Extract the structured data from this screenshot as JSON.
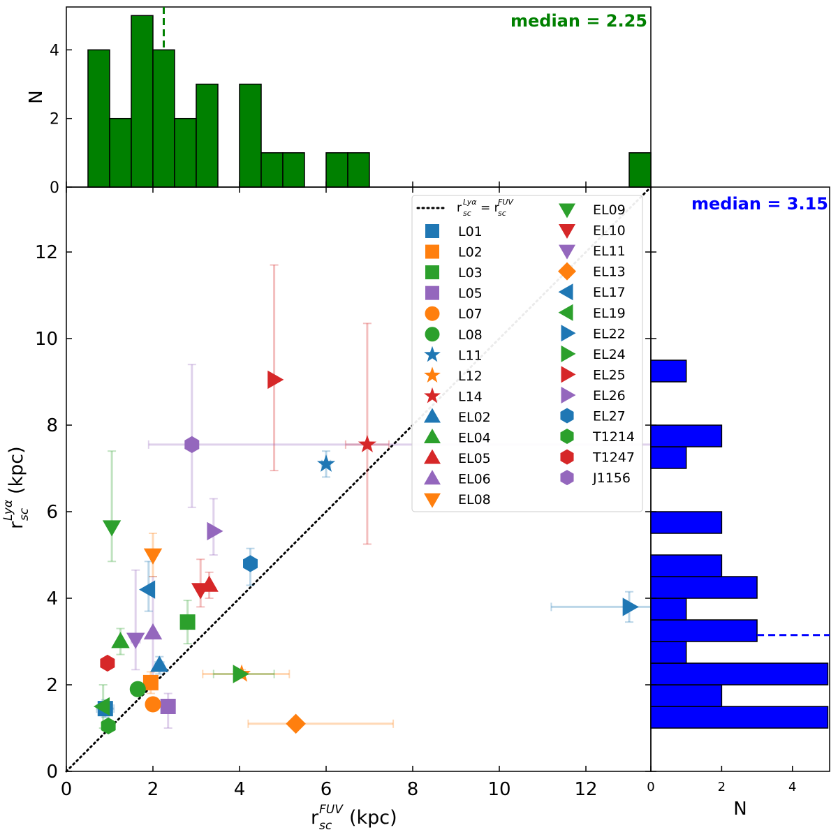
{
  "chart_data": [
    {
      "type": "histogram",
      "panel": "top",
      "orientation": "vertical",
      "ylabel": "N",
      "yticks": [
        0,
        2,
        4
      ],
      "bin_width": 0.5,
      "bins": [
        {
          "start": 0.5,
          "count": 4
        },
        {
          "start": 1.0,
          "count": 2
        },
        {
          "start": 1.5,
          "count": 5
        },
        {
          "start": 2.0,
          "count": 4
        },
        {
          "start": 2.5,
          "count": 2
        },
        {
          "start": 3.0,
          "count": 3
        },
        {
          "start": 4.0,
          "count": 3
        },
        {
          "start": 4.5,
          "count": 1
        },
        {
          "start": 5.0,
          "count": 1
        },
        {
          "start": 6.0,
          "count": 1
        },
        {
          "start": 6.5,
          "count": 1
        },
        {
          "start": 13.0,
          "count": 1
        }
      ],
      "median": 2.25,
      "median_label": "median = 2.25",
      "color": "#008000"
    },
    {
      "type": "scatter",
      "panel": "main",
      "xlabel": "r_sc^FUV (kpc)",
      "ylabel": "r_sc^Lyα (kpc)",
      "xlim": [
        0,
        13.5
      ],
      "ylim": [
        0,
        13.5
      ],
      "xticks": [
        0,
        2,
        4,
        6,
        8,
        10,
        12
      ],
      "yticks": [
        0,
        2,
        4,
        6,
        8,
        10,
        12
      ],
      "reference_line": {
        "label": "r_sc^Lyα = r_sc^FUV",
        "style": "dotted",
        "color": "#000000"
      },
      "series": [
        {
          "name": "L01",
          "marker": "square",
          "color": "#1f77b4",
          "x": 0.9,
          "y": 1.45,
          "xerr": [
            0.2,
            0.2
          ],
          "yerr": [
            0.2,
            0.2
          ]
        },
        {
          "name": "L02",
          "marker": "square",
          "color": "#ff7f0e",
          "x": 1.95,
          "y": 2.05,
          "xerr": [
            0.1,
            0.1
          ],
          "yerr": [
            0.25,
            0.25
          ]
        },
        {
          "name": "L03",
          "marker": "square",
          "color": "#2ca02c",
          "x": 2.8,
          "y": 3.45,
          "xerr": [
            0.1,
            0.1
          ],
          "yerr": [
            0.5,
            0.5
          ]
        },
        {
          "name": "L05",
          "marker": "square",
          "color": "#9467bd",
          "x": 2.35,
          "y": 1.5,
          "xerr": [
            0.1,
            0.1
          ],
          "yerr": [
            0.5,
            0.3
          ]
        },
        {
          "name": "L07",
          "marker": "circle",
          "color": "#ff7f0e",
          "x": 2.0,
          "y": 1.55,
          "xerr": [
            0.05,
            0.05
          ],
          "yerr": [
            0.15,
            0.15
          ]
        },
        {
          "name": "L08",
          "marker": "circle",
          "color": "#2ca02c",
          "x": 1.65,
          "y": 1.9,
          "xerr": [
            0.1,
            0.1
          ],
          "yerr": [
            0.15,
            0.15
          ]
        },
        {
          "name": "L11",
          "marker": "star",
          "color": "#1f77b4",
          "x": 6.0,
          "y": 7.1,
          "xerr": [
            0.1,
            0.1
          ],
          "yerr": [
            0.3,
            0.3
          ]
        },
        {
          "name": "L12",
          "marker": "star",
          "color": "#ff7f0e",
          "x": 4.05,
          "y": 2.25,
          "xerr": [
            0.9,
            1.1
          ],
          "yerr": [
            0.1,
            0.1
          ]
        },
        {
          "name": "L14",
          "marker": "star",
          "color": "#d62728",
          "x": 6.95,
          "y": 7.55,
          "xerr": [
            0.5,
            0.5
          ],
          "yerr": [
            2.3,
            2.8
          ]
        },
        {
          "name": "EL02",
          "marker": "triangle-up",
          "color": "#1f77b4",
          "x": 2.15,
          "y": 2.45,
          "xerr": [
            0.1,
            0.1
          ],
          "yerr": [
            0.2,
            0.2
          ]
        },
        {
          "name": "EL04",
          "marker": "triangle-up",
          "color": "#2ca02c",
          "x": 1.25,
          "y": 3.0,
          "xerr": [
            0.05,
            0.05
          ],
          "yerr": [
            0.3,
            0.3
          ]
        },
        {
          "name": "EL05",
          "marker": "triangle-up",
          "color": "#d62728",
          "x": 3.3,
          "y": 4.3,
          "xerr": [
            0.05,
            0.05
          ],
          "yerr": [
            0.3,
            0.3
          ]
        },
        {
          "name": "EL06",
          "marker": "triangle-up",
          "color": "#9467bd",
          "x": 2.0,
          "y": 3.2,
          "xerr": [
            0.05,
            0.05
          ],
          "yerr": [
            1.3,
            1.3
          ]
        },
        {
          "name": "EL08",
          "marker": "triangle-down",
          "color": "#ff7f0e",
          "x": 2.0,
          "y": 5.0,
          "xerr": [
            0.05,
            0.05
          ],
          "yerr": [
            0.5,
            0.5
          ]
        },
        {
          "name": "EL09",
          "marker": "triangle-down",
          "color": "#2ca02c",
          "x": 1.05,
          "y": 5.65,
          "xerr": [
            0.05,
            0.05
          ],
          "yerr": [
            0.8,
            1.75
          ]
        },
        {
          "name": "EL10",
          "marker": "triangle-down",
          "color": "#d62728",
          "x": 3.1,
          "y": 4.2,
          "xerr": [
            0.05,
            0.05
          ],
          "yerr": [
            0.4,
            0.7
          ]
        },
        {
          "name": "EL11",
          "marker": "triangle-down",
          "color": "#9467bd",
          "x": 1.6,
          "y": 3.05,
          "xerr": [
            0.1,
            0.1
          ],
          "yerr": [
            0.7,
            1.6
          ]
        },
        {
          "name": "EL13",
          "marker": "diamond",
          "color": "#ff7f0e",
          "x": 5.3,
          "y": 1.1,
          "xerr": [
            1.1,
            2.25
          ],
          "yerr": [
            0.05,
            0.05
          ]
        },
        {
          "name": "EL17",
          "marker": "triangle-left",
          "color": "#1f77b4",
          "x": 1.9,
          "y": 4.2,
          "xerr": [
            0.05,
            0.05
          ],
          "yerr": [
            0.5,
            0.65
          ]
        },
        {
          "name": "EL19",
          "marker": "triangle-left",
          "color": "#2ca02c",
          "x": 0.85,
          "y": 1.5,
          "xerr": [
            0.05,
            0.05
          ],
          "yerr": [
            0.5,
            0.5
          ]
        },
        {
          "name": "EL22",
          "marker": "triangle-right",
          "color": "#1f77b4",
          "x": 13.0,
          "y": 3.8,
          "xerr": [
            1.8,
            0.9
          ],
          "yerr": [
            0.35,
            0.35
          ]
        },
        {
          "name": "EL24",
          "marker": "triangle-right",
          "color": "#2ca02c",
          "x": 4.0,
          "y": 2.25,
          "xerr": [
            0.6,
            0.8
          ],
          "yerr": [
            0.05,
            0.05
          ]
        },
        {
          "name": "EL25",
          "marker": "triangle-right",
          "color": "#d62728",
          "x": 4.8,
          "y": 9.05,
          "xerr": [
            0.05,
            0.05
          ],
          "yerr": [
            2.1,
            2.65
          ]
        },
        {
          "name": "EL26",
          "marker": "triangle-right",
          "color": "#9467bd",
          "x": 3.4,
          "y": 5.55,
          "xerr": [
            0.05,
            0.05
          ],
          "yerr": [
            0.55,
            0.75
          ]
        },
        {
          "name": "EL27",
          "marker": "hexagon",
          "color": "#1f77b4",
          "x": 4.25,
          "y": 4.8,
          "xerr": [
            0.05,
            0.05
          ],
          "yerr": [
            0.5,
            0.35
          ]
        },
        {
          "name": "T1214",
          "marker": "hexagon",
          "color": "#2ca02c",
          "x": 0.97,
          "y": 1.05,
          "xerr": [
            0.05,
            0.05
          ],
          "yerr": [
            0.1,
            0.1
          ]
        },
        {
          "name": "T1247",
          "marker": "hexagon",
          "color": "#d62728",
          "x": 0.95,
          "y": 2.5,
          "xerr": [
            0.05,
            0.05
          ],
          "yerr": [
            0.1,
            0.1
          ]
        },
        {
          "name": "J1156",
          "marker": "hexagon",
          "color": "#9467bd",
          "x": 2.9,
          "y": 7.55,
          "xerr": [
            1.0,
            10.6
          ],
          "yerr": [
            1.45,
            1.85
          ]
        }
      ]
    },
    {
      "type": "histogram",
      "panel": "right",
      "orientation": "horizontal",
      "xlabel": "N",
      "xticks": [
        0,
        2,
        4
      ],
      "bin_width": 0.5,
      "bins": [
        {
          "start": 1.0,
          "count": 5
        },
        {
          "start": 1.5,
          "count": 2
        },
        {
          "start": 2.0,
          "count": 5
        },
        {
          "start": 2.5,
          "count": 1
        },
        {
          "start": 3.0,
          "count": 3
        },
        {
          "start": 3.5,
          "count": 1
        },
        {
          "start": 4.0,
          "count": 3
        },
        {
          "start": 4.5,
          "count": 2
        },
        {
          "start": 5.5,
          "count": 2
        },
        {
          "start": 7.0,
          "count": 1
        },
        {
          "start": 7.5,
          "count": 2
        },
        {
          "start": 9.0,
          "count": 1
        }
      ],
      "median": 3.15,
      "median_label": "median = 3.15",
      "color": "#0000ff"
    }
  ]
}
